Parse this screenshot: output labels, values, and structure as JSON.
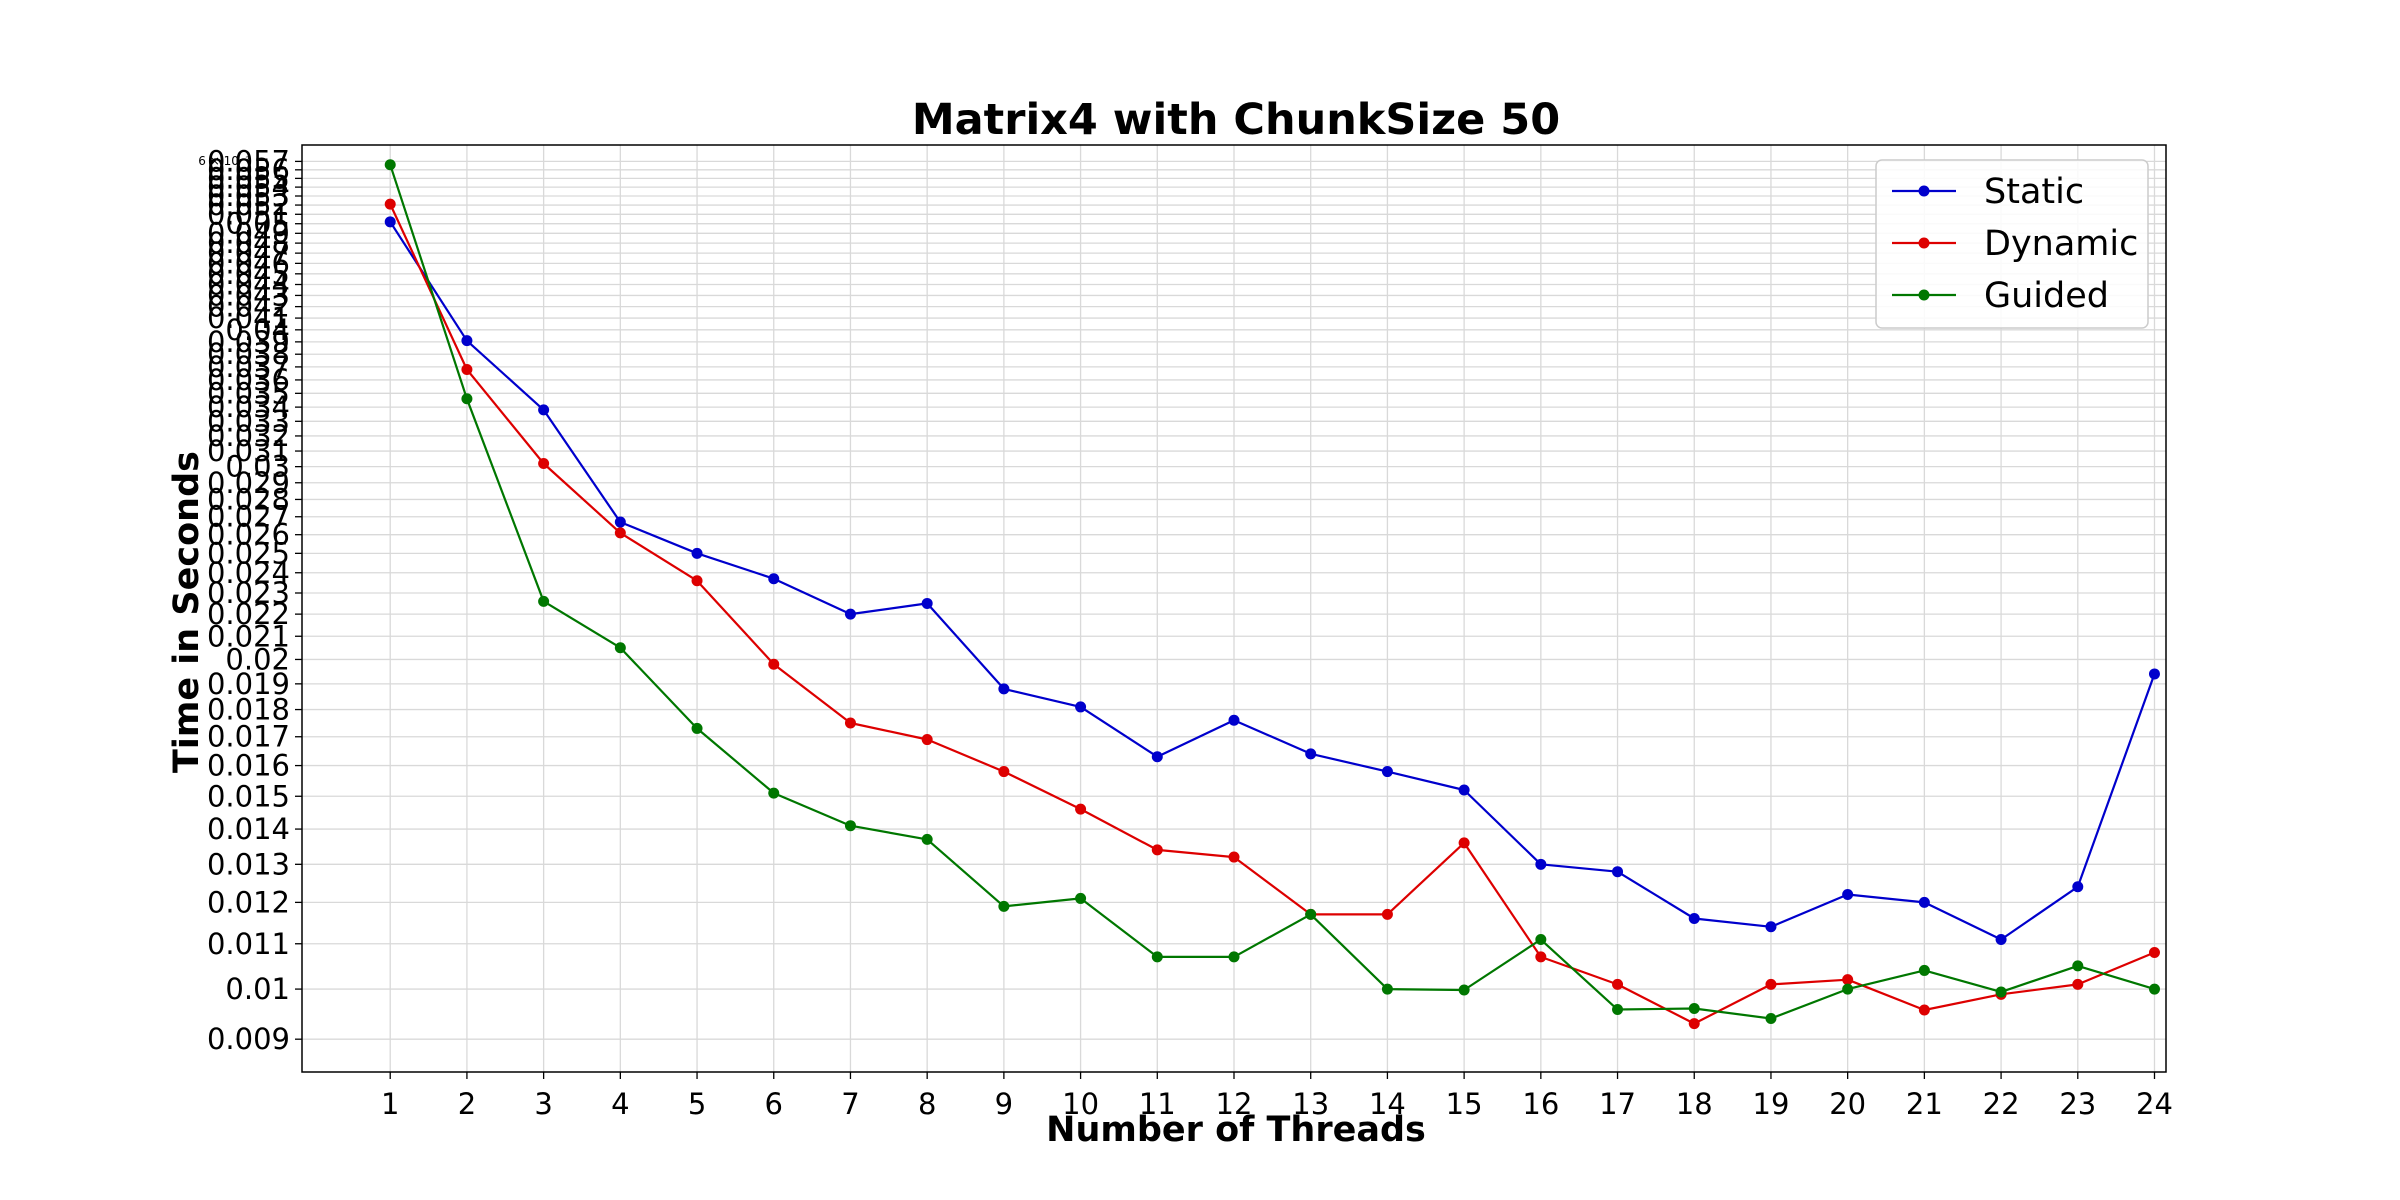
{
  "chart_data": {
    "type": "line",
    "title": "Matrix4 with ChunkSize 50",
    "xlabel": "Number of Threads",
    "ylabel": "Time in Seconds",
    "yscale": "log",
    "ylim": [
      0.0084,
      0.059
    ],
    "xlim": [
      -0.15,
      24.15
    ],
    "grid": true,
    "legend_position": "top-right",
    "x": [
      1,
      2,
      3,
      4,
      5,
      6,
      7,
      8,
      9,
      10,
      11,
      12,
      13,
      14,
      15,
      16,
      17,
      18,
      19,
      20,
      21,
      22,
      23,
      24
    ],
    "x_tick_labels": [
      "1",
      "2",
      "3",
      "4",
      "5",
      "6",
      "7",
      "8",
      "9",
      "10",
      "11",
      "12",
      "13",
      "14",
      "15",
      "16",
      "17",
      "18",
      "19",
      "20",
      "21",
      "22",
      "23",
      "24"
    ],
    "y_ticks": [
      0.009,
      0.01,
      0.011,
      0.012,
      0.013,
      0.014,
      0.015,
      0.016,
      0.017,
      0.018,
      0.019,
      0.02,
      0.021,
      0.022,
      0.023,
      0.024,
      0.025,
      0.026,
      0.027,
      0.028,
      0.029,
      0.03,
      0.031,
      0.032,
      0.033,
      0.034,
      0.035,
      0.036,
      0.037,
      0.038,
      0.039,
      0.04,
      0.041,
      0.042,
      0.043,
      0.044,
      0.045,
      0.046,
      0.047,
      0.048,
      0.049,
      0.05,
      0.051,
      0.052,
      0.053,
      0.054,
      0.055,
      0.056,
      0.057
    ],
    "y_tick_labels": [
      "0.009",
      "0.01",
      "0.011",
      "0.012",
      "0.013",
      "0.014",
      "0.015",
      "0.016",
      "0.017",
      "0.018",
      "0.019",
      "0.02",
      "0.021",
      "0.022",
      "0.023",
      "0.024",
      "0.025",
      "0.026",
      "0.027",
      "0.028",
      "0.029",
      "0.03",
      "0.031",
      "0.032",
      "0.033",
      "0.034",
      "0.035",
      "0.036",
      "0.037",
      "0.038",
      "0.039",
      "0.04",
      "0.041",
      "0.042",
      "0.043",
      "0.044",
      "0.045",
      "0.046",
      "0.047",
      "0.048",
      "0.049",
      "0.05",
      "0.051",
      "0.052",
      "0.053",
      "0.054",
      "0.055",
      "0.056",
      "0.057"
    ],
    "y_top_label": "6 × 10⁻²",
    "series": [
      {
        "name": "Static",
        "color": "#0000cc",
        "values": [
          0.0502,
          0.0391,
          0.0338,
          0.0267,
          0.025,
          0.0237,
          0.022,
          0.0225,
          0.0188,
          0.0181,
          0.0163,
          0.0176,
          0.0164,
          0.0158,
          0.0152,
          0.013,
          0.0128,
          0.0116,
          0.0114,
          0.0122,
          0.012,
          0.0111,
          0.0124,
          0.0194
        ]
      },
      {
        "name": "Dynamic",
        "color": "#dd0000",
        "values": [
          0.0521,
          0.0368,
          0.0302,
          0.0261,
          0.0236,
          0.0198,
          0.0175,
          0.0169,
          0.0158,
          0.0146,
          0.0134,
          0.0132,
          0.0117,
          0.0117,
          0.0136,
          0.0107,
          0.0101,
          0.0093,
          0.0101,
          0.0102,
          0.00957,
          0.00989,
          0.0101,
          0.0108
        ]
      },
      {
        "name": "Guided",
        "color": "#007700",
        "values": [
          0.0566,
          0.0346,
          0.0226,
          0.0205,
          0.0173,
          0.0151,
          0.0141,
          0.0137,
          0.0119,
          0.0121,
          0.0107,
          0.0107,
          0.0117,
          0.01,
          0.00998,
          0.0111,
          0.00958,
          0.0096,
          0.0094,
          0.01,
          0.0104,
          0.00994,
          0.0105,
          0.01
        ]
      }
    ]
  }
}
